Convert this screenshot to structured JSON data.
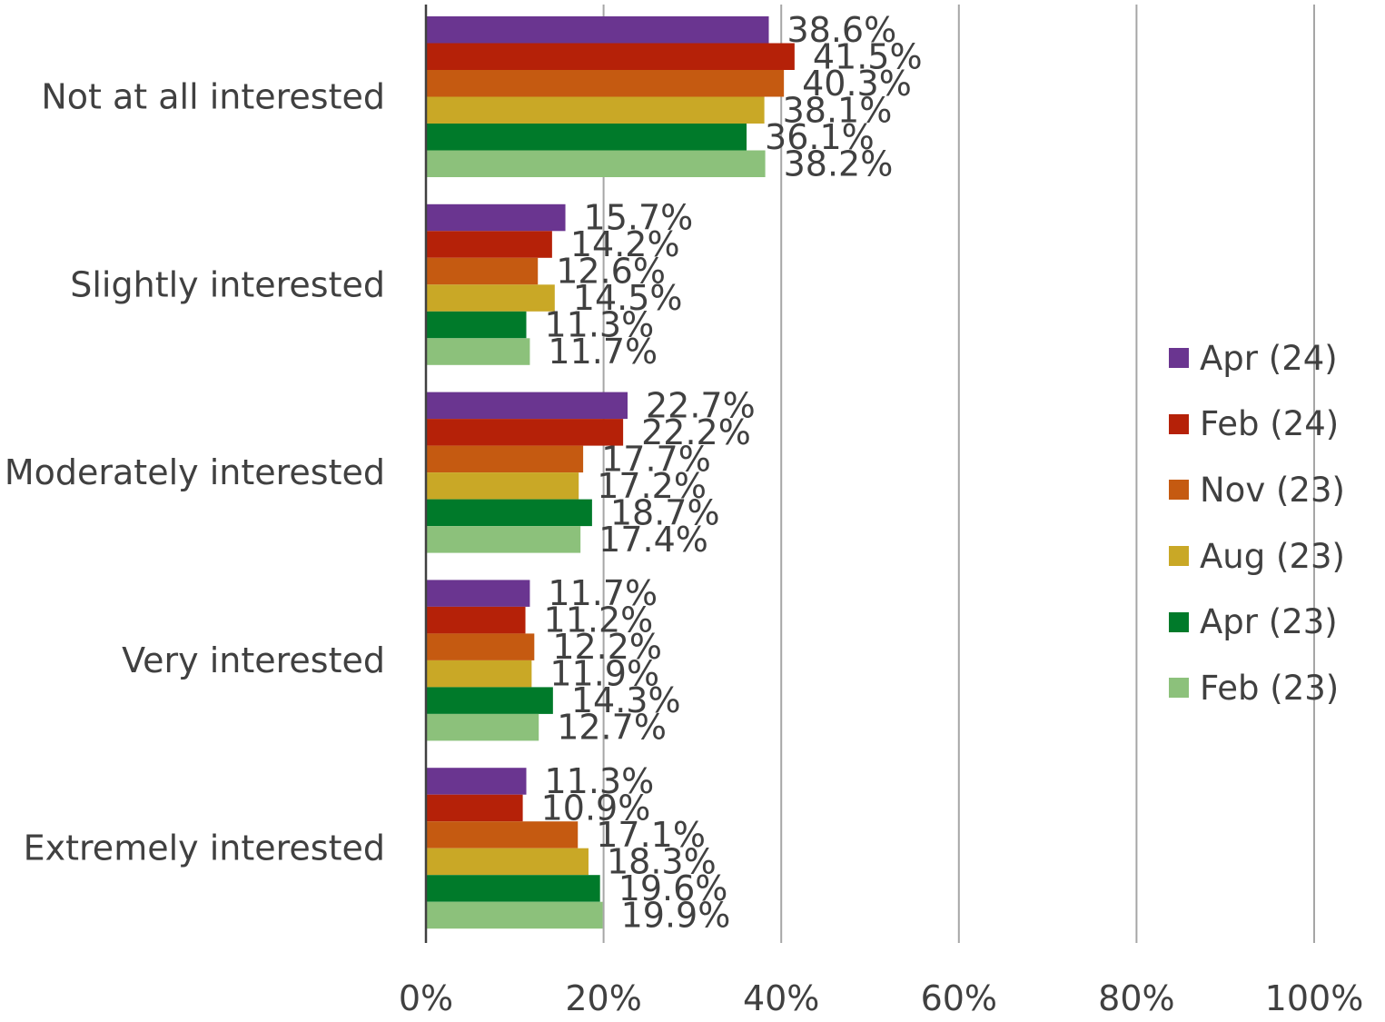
{
  "chart_data": {
    "type": "bar",
    "orientation": "horizontal",
    "categories": [
      "Not at all interested",
      "Slightly interested",
      "Moderately interested",
      "Very interested",
      "Extremely interested"
    ],
    "series": [
      {
        "name": "Apr (24)",
        "color": "#6a3590",
        "values": [
          38.6,
          15.7,
          22.7,
          11.7,
          11.3
        ]
      },
      {
        "name": "Feb (24)",
        "color": "#b52108",
        "values": [
          41.5,
          14.2,
          22.2,
          11.2,
          10.9
        ]
      },
      {
        "name": "Nov (23)",
        "color": "#c55a11",
        "values": [
          40.3,
          12.6,
          17.7,
          12.2,
          17.1
        ]
      },
      {
        "name": "Aug (23)",
        "color": "#c9a826",
        "values": [
          38.1,
          14.5,
          17.2,
          11.9,
          18.3
        ]
      },
      {
        "name": "Apr (23)",
        "color": "#007a2a",
        "values": [
          36.1,
          11.3,
          18.7,
          14.3,
          19.6
        ]
      },
      {
        "name": "Feb (23)",
        "color": "#8cc17b",
        "values": [
          38.2,
          11.7,
          17.4,
          12.7,
          19.9
        ]
      }
    ],
    "value_format": "percent_1dp",
    "xlim": [
      0,
      100
    ],
    "x_ticks": [
      "0%",
      "20%",
      "40%",
      "60%",
      "80%",
      "100%"
    ],
    "grid": "vertical",
    "legend_position": "right",
    "title": "",
    "xlabel": "",
    "ylabel": ""
  }
}
